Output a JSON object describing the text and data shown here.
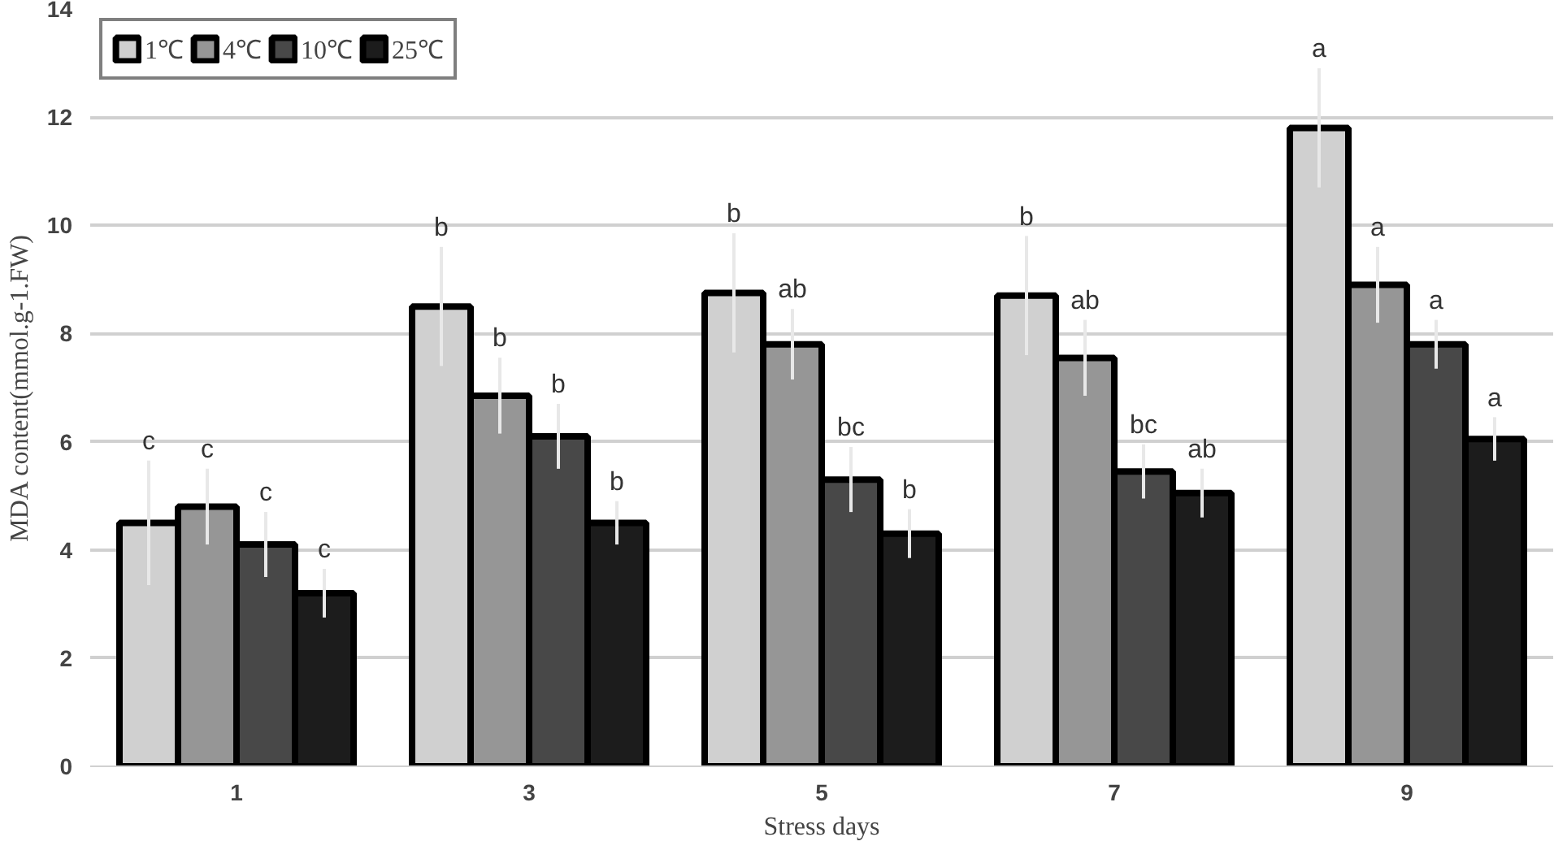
{
  "chart_data": {
    "type": "bar",
    "xlabel": "Stress days",
    "ylabel": "MDA content(mmol.g-1.FW)",
    "categories": [
      "1",
      "3",
      "5",
      "7",
      "9"
    ],
    "series": [
      {
        "name": "1℃",
        "color": "#d0d0d0",
        "values": [
          4.5,
          8.5,
          8.75,
          8.7,
          11.8
        ],
        "errors": [
          1.15,
          1.1,
          1.1,
          1.1,
          1.1
        ]
      },
      {
        "name": "4℃",
        "color": "#969696",
        "values": [
          4.8,
          6.85,
          7.8,
          7.55,
          8.9
        ],
        "errors": [
          0.7,
          0.7,
          0.65,
          0.7,
          0.7
        ]
      },
      {
        "name": "10℃",
        "color": "#484848",
        "values": [
          4.1,
          6.1,
          5.3,
          5.45,
          7.8
        ],
        "errors": [
          0.6,
          0.6,
          0.6,
          0.5,
          0.45
        ]
      },
      {
        "name": "25℃",
        "color": "#1c1c1c",
        "values": [
          3.2,
          4.5,
          4.3,
          5.05,
          6.05
        ],
        "errors": [
          0.45,
          0.4,
          0.45,
          0.45,
          0.4
        ]
      }
    ],
    "ylim": [
      0,
      14
    ],
    "yticks": [
      0,
      2,
      4,
      6,
      8,
      10,
      12,
      14
    ],
    "grid": "y",
    "legend": "top left",
    "annotations": [
      {
        "text": "c",
        "y": 5.65
      },
      {
        "text": "c",
        "y": 5.5
      },
      {
        "text": "c",
        "y": 4.7
      },
      {
        "text": "c",
        "y": 3.65
      },
      {
        "text": "b",
        "y": 9.6
      },
      {
        "text": "b",
        "y": 7.55
      },
      {
        "text": "b",
        "y": 6.7
      },
      {
        "text": "b",
        "y": 4.9
      },
      {
        "text": "b",
        "y": 9.85
      },
      {
        "text": "ab",
        "y": 8.45
      },
      {
        "text": "bc",
        "y": 5.9
      },
      {
        "text": "b",
        "y": 4.75
      },
      {
        "text": "b",
        "y": 9.8
      },
      {
        "text": "ab",
        "y": 8.25
      },
      {
        "text": "bc",
        "y": 5.95
      },
      {
        "text": "ab",
        "y": 5.5
      },
      {
        "text": "a",
        "y": 12.9
      },
      {
        "text": "a",
        "y": 9.6
      },
      {
        "text": "a",
        "y": 8.25
      },
      {
        "text": "a",
        "y": 6.45
      }
    ]
  }
}
